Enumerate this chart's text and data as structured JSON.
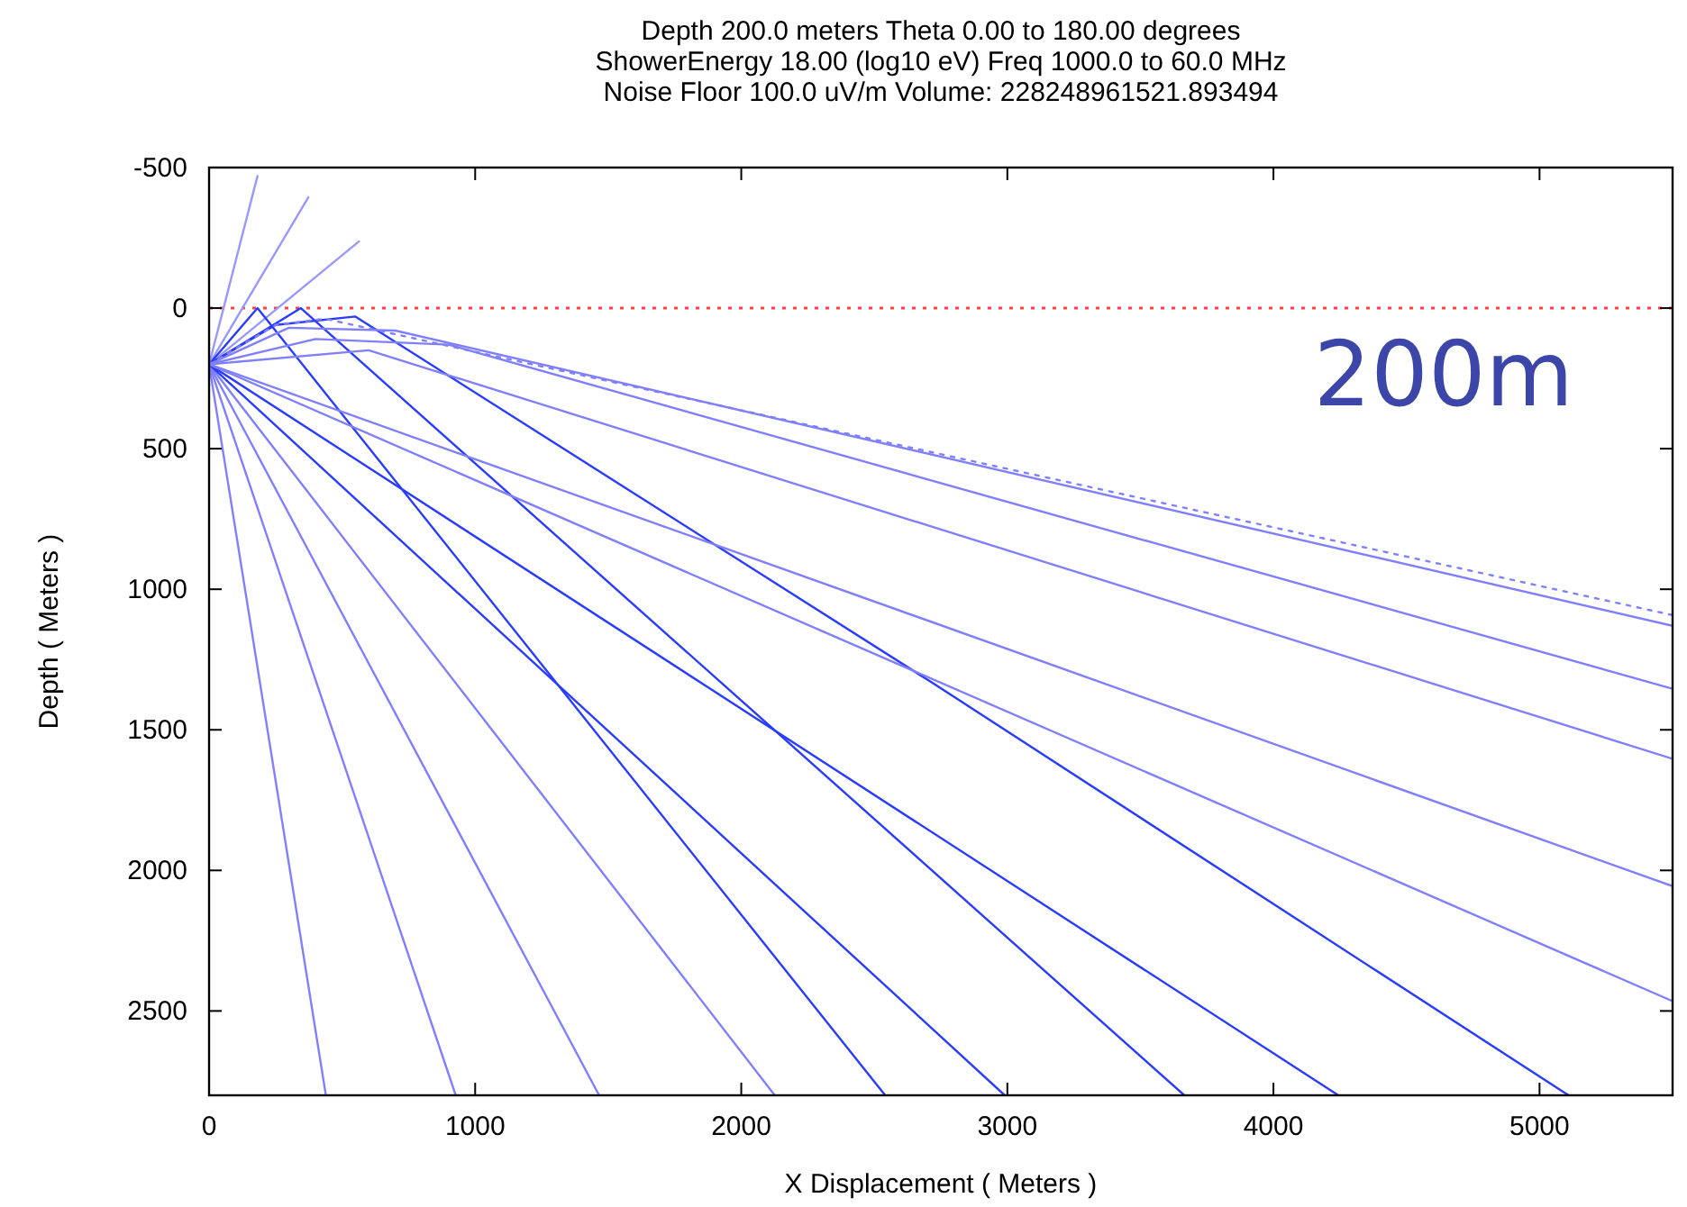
{
  "chart_data": {
    "type": "line",
    "title": "Depth 200.0 meters Theta 0.00 to 180.00 degrees\nShowerEnergy 18.00 (log10 eV) Freq 1000.0 to  60.0 MHz\nNoise Floor 100.0 uV/m Volume: 228248961521.893494",
    "xlabel": "X Displacement ( Meters )",
    "ylabel": "Depth ( Meters )",
    "xlim": [
      0,
      5500
    ],
    "xticks": [
      0,
      1000,
      2000,
      3000,
      4000,
      5000
    ],
    "ylim": [
      2800,
      -500
    ],
    "yticks": [
      -500,
      0,
      500,
      1000,
      1500,
      2000,
      2500
    ],
    "grid": false,
    "marker": "none",
    "line_style": "solid",
    "annotations": [
      "200m"
    ],
    "ref_lines": [
      {
        "axis": "y",
        "value": 0,
        "color": "#ff4444",
        "line_style": "dotted"
      }
    ],
    "series": [
      {
        "color": "#9898ff",
        "x": [
          0,
          182
        ],
        "values": [
          200,
          -470
        ]
      },
      {
        "color": "#9898ff",
        "x": [
          0,
          373
        ],
        "values": [
          200,
          -394
        ]
      },
      {
        "color": "#9898ff",
        "x": [
          0,
          563
        ],
        "values": [
          200,
          -237
        ]
      },
      {
        "color": "#8080ff",
        "x": [
          0,
          439
        ],
        "values": [
          200,
          2800
        ]
      },
      {
        "color": "#8080ff",
        "x": [
          0,
          927
        ],
        "values": [
          200,
          2800
        ]
      },
      {
        "color": "#8080ff",
        "x": [
          0,
          1466
        ],
        "values": [
          200,
          2800
        ]
      },
      {
        "color": "#8080ff",
        "x": [
          0,
          2126
        ],
        "values": [
          200,
          2800
        ]
      },
      {
        "color": "#2a3cff",
        "x": [
          0,
          182,
          2541
        ],
        "values": [
          200,
          0,
          2800
        ]
      },
      {
        "color": "#2a3cff",
        "x": [
          0,
          345,
          3665
        ],
        "values": [
          200,
          0,
          2800
        ]
      },
      {
        "color": "#2a3cff",
        "x": [
          0,
          2990
        ],
        "values": [
          200,
          2800
        ]
      },
      {
        "color": "#2a3cff",
        "x": [
          0,
          4244
        ],
        "values": [
          200,
          2800
        ]
      },
      {
        "color": "#2a3cff",
        "x": [
          0,
          250,
          550,
          2722,
          5109
        ],
        "values": [
          200,
          60,
          30,
          1335,
          2800
        ]
      },
      {
        "color": "#8080ff",
        "x": [
          0,
          5500
        ],
        "values": [
          200,
          2465
        ]
      },
      {
        "color": "#8080ff",
        "x": [
          0,
          5500
        ],
        "values": [
          200,
          2056
        ]
      },
      {
        "color": "#8080ff",
        "x": [
          0,
          600,
          5500
        ],
        "values": [
          200,
          150,
          1603
        ]
      },
      {
        "color": "#8080ff",
        "x": [
          0,
          400,
          900,
          5500
        ],
        "values": [
          200,
          110,
          130,
          1354
        ]
      },
      {
        "color": "#8080ff",
        "x": [
          0,
          300,
          700,
          5500
        ],
        "values": [
          200,
          70,
          80,
          1130
        ]
      },
      {
        "color": "#8080ff",
        "x": [
          0,
          250,
          436,
          5500
        ],
        "values": [
          200,
          60,
          38,
          1092
        ],
        "line_style": "dotted"
      }
    ]
  }
}
